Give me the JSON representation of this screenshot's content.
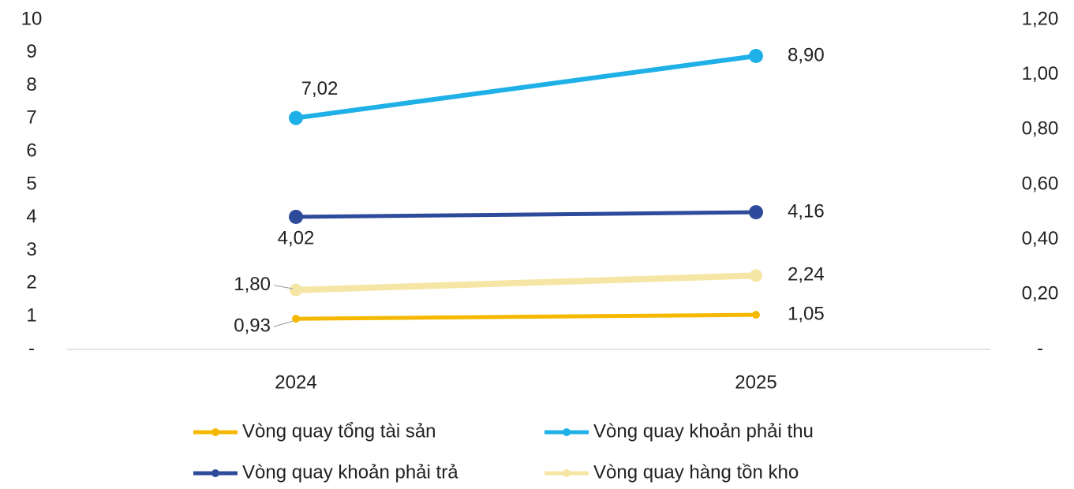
{
  "chart_data": {
    "type": "line",
    "categories": [
      "2024",
      "2025"
    ],
    "series": [
      {
        "name": "Vòng quay tổng tài sản",
        "color": "#f5b800",
        "values": [
          0.93,
          1.05
        ],
        "value_labels": [
          "0,93",
          "1,05"
        ]
      },
      {
        "name": "Vòng quay khoản phải thu",
        "color": "#1fb0e8",
        "values": [
          7.02,
          8.9
        ],
        "value_labels": [
          "7,02",
          "8,90"
        ]
      },
      {
        "name": "Vòng quay khoản phải trả",
        "color": "#2e4a9a",
        "values": [
          4.02,
          4.16
        ],
        "value_labels": [
          "4,02",
          "4,16"
        ]
      },
      {
        "name": "Vòng quay hàng tồn kho",
        "color": "#f6e6a6",
        "values": [
          1.8,
          2.24
        ],
        "value_labels": [
          "1,80",
          "2,24"
        ]
      }
    ],
    "ylim": [
      0,
      10
    ],
    "yticks": [
      {
        "value": 0,
        "label": "-"
      },
      1,
      2,
      3,
      4,
      5,
      6,
      7,
      8,
      9,
      10
    ],
    "y2lim": [
      0,
      1.2
    ],
    "y2ticks": [
      {
        "value": 0,
        "label": "-"
      },
      {
        "value": 0.2,
        "label": "0,20"
      },
      {
        "value": 0.4,
        "label": "0,40"
      },
      {
        "value": 0.6,
        "label": "0,60"
      },
      {
        "value": 0.8,
        "label": "0,80"
      },
      {
        "value": 1.0,
        "label": "1,00"
      },
      {
        "value": 1.2,
        "label": "1,20"
      }
    ],
    "legend": "bottom"
  }
}
